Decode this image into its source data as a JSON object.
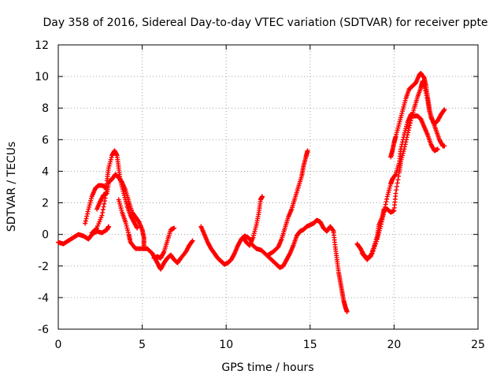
{
  "chart_data": {
    "type": "scatter",
    "title": "Day 358 of 2016, Sidereal Day-to-day VTEC variation (SDTVAR) for receiver ppte",
    "xlabel": "GPS time / hours",
    "ylabel": "SDTVAR / TECUs",
    "xlim": [
      0,
      25
    ],
    "ylim": [
      -6,
      12
    ],
    "xticks": [
      0,
      5,
      10,
      15,
      20,
      25
    ],
    "yticks": [
      -6,
      -4,
      -2,
      0,
      2,
      4,
      6,
      8,
      10,
      12
    ],
    "xtick_labels": [
      "0",
      "5",
      "10",
      "15",
      "20",
      "25"
    ],
    "ytick_labels": [
      "-6",
      "-4",
      "-2",
      "0",
      "2",
      "4",
      "6",
      "8",
      "10",
      "12"
    ],
    "grid": true,
    "marker": "+",
    "color": "#ff0000",
    "series": [
      {
        "name": "ppte",
        "segments": [
          [
            [
              0.0,
              -0.5
            ],
            [
              0.3,
              -0.6
            ],
            [
              0.6,
              -0.4
            ],
            [
              0.9,
              -0.2
            ],
            [
              1.2,
              0.0
            ],
            [
              1.5,
              -0.1
            ],
            [
              1.8,
              -0.3
            ],
            [
              2.0,
              0.0
            ],
            [
              2.3,
              0.2
            ],
            [
              2.6,
              0.1
            ],
            [
              2.9,
              0.3
            ],
            [
              3.0,
              0.5
            ]
          ],
          [
            [
              1.6,
              0.7
            ],
            [
              1.8,
              1.6
            ],
            [
              2.0,
              2.4
            ],
            [
              2.2,
              2.9
            ],
            [
              2.4,
              3.1
            ],
            [
              2.6,
              3.1
            ],
            [
              2.8,
              3.0
            ]
          ],
          [
            [
              2.0,
              0.1
            ],
            [
              2.3,
              0.4
            ],
            [
              2.6,
              1.2
            ],
            [
              2.8,
              2.3
            ],
            [
              2.9,
              3.4
            ],
            [
              3.0,
              4.2
            ],
            [
              3.2,
              5.0
            ],
            [
              3.35,
              5.3
            ],
            [
              3.5,
              5.0
            ],
            [
              3.6,
              4.2
            ],
            [
              3.7,
              3.4
            ],
            [
              3.9,
              2.6
            ],
            [
              4.1,
              1.8
            ],
            [
              4.3,
              1.2
            ],
            [
              4.5,
              0.8
            ],
            [
              4.7,
              0.4
            ]
          ],
          [
            [
              2.3,
              1.6
            ],
            [
              2.5,
              2.1
            ],
            [
              2.7,
              2.5
            ],
            [
              2.9,
              2.6
            ],
            [
              3.0,
              3.3
            ],
            [
              3.2,
              3.5
            ],
            [
              3.4,
              3.8
            ],
            [
              3.6,
              3.6
            ],
            [
              3.8,
              3.3
            ],
            [
              4.0,
              2.8
            ],
            [
              4.2,
              2.1
            ],
            [
              4.4,
              1.4
            ],
            [
              4.6,
              1.1
            ],
            [
              4.8,
              0.8
            ],
            [
              5.0,
              0.3
            ],
            [
              5.1,
              -0.2
            ],
            [
              5.1,
              -0.7
            ]
          ],
          [
            [
              3.6,
              2.2
            ],
            [
              3.8,
              1.4
            ],
            [
              4.0,
              0.8
            ],
            [
              4.2,
              0.0
            ],
            [
              4.3,
              -0.5
            ],
            [
              4.6,
              -0.9
            ],
            [
              5.0,
              -0.9
            ],
            [
              5.3,
              -0.9
            ],
            [
              5.6,
              -1.2
            ],
            [
              5.8,
              -1.6
            ],
            [
              6.0,
              -2.0
            ],
            [
              6.1,
              -2.2
            ],
            [
              6.3,
              -1.8
            ],
            [
              6.5,
              -1.5
            ],
            [
              6.7,
              -1.3
            ],
            [
              6.9,
              -1.6
            ],
            [
              7.1,
              -1.8
            ],
            [
              7.3,
              -1.5
            ],
            [
              7.6,
              -1.1
            ],
            [
              7.8,
              -0.7
            ],
            [
              8.0,
              -0.4
            ]
          ],
          [
            [
              5.7,
              -1.5
            ],
            [
              5.9,
              -1.4
            ],
            [
              6.1,
              -1.5
            ],
            [
              6.3,
              -1.1
            ],
            [
              6.5,
              -0.4
            ],
            [
              6.7,
              0.3
            ],
            [
              6.9,
              0.4
            ]
          ],
          [
            [
              8.5,
              0.5
            ],
            [
              8.7,
              0.0
            ],
            [
              8.9,
              -0.5
            ],
            [
              9.1,
              -0.9
            ],
            [
              9.3,
              -1.2
            ],
            [
              9.5,
              -1.5
            ],
            [
              9.7,
              -1.7
            ],
            [
              9.9,
              -1.9
            ],
            [
              10.1,
              -1.8
            ],
            [
              10.3,
              -1.6
            ],
            [
              10.5,
              -1.2
            ],
            [
              10.7,
              -0.7
            ],
            [
              10.9,
              -0.3
            ],
            [
              11.1,
              -0.1
            ],
            [
              11.3,
              -0.2
            ],
            [
              11.5,
              -0.4
            ]
          ],
          [
            [
              11.0,
              -0.2
            ],
            [
              11.2,
              -0.5
            ],
            [
              11.4,
              -0.7
            ],
            [
              11.6,
              -0.2
            ],
            [
              11.8,
              0.6
            ],
            [
              11.95,
              1.4
            ],
            [
              12.05,
              2.2
            ],
            [
              12.15,
              2.4
            ]
          ],
          [
            [
              11.5,
              -0.6
            ],
            [
              11.8,
              -0.9
            ],
            [
              12.1,
              -1.0
            ],
            [
              12.4,
              -1.3
            ],
            [
              12.7,
              -1.6
            ],
            [
              13.0,
              -1.9
            ],
            [
              13.2,
              -2.1
            ],
            [
              13.4,
              -2.0
            ],
            [
              13.6,
              -1.6
            ],
            [
              13.8,
              -1.2
            ],
            [
              14.0,
              -0.7
            ],
            [
              14.2,
              -0.1
            ],
            [
              14.4,
              0.2
            ],
            [
              14.6,
              0.3
            ],
            [
              14.8,
              0.5
            ],
            [
              15.0,
              0.6
            ],
            [
              15.2,
              0.7
            ],
            [
              15.4,
              0.9
            ],
            [
              15.6,
              0.8
            ],
            [
              15.8,
              0.4
            ],
            [
              16.0,
              0.2
            ],
            [
              16.2,
              0.5
            ],
            [
              16.4,
              0.2
            ]
          ],
          [
            [
              12.5,
              -1.3
            ],
            [
              12.8,
              -1.1
            ],
            [
              13.1,
              -0.8
            ],
            [
              13.3,
              -0.3
            ],
            [
              13.5,
              0.4
            ],
            [
              13.7,
              1.1
            ],
            [
              13.9,
              1.6
            ],
            [
              14.1,
              2.3
            ],
            [
              14.3,
              3.0
            ],
            [
              14.5,
              3.7
            ],
            [
              14.6,
              4.3
            ],
            [
              14.75,
              4.9
            ],
            [
              14.85,
              5.3
            ]
          ],
          [
            [
              16.4,
              0.1
            ],
            [
              16.5,
              -0.8
            ],
            [
              16.6,
              -1.6
            ],
            [
              16.7,
              -2.4
            ],
            [
              16.8,
              -3.0
            ],
            [
              16.9,
              -3.6
            ],
            [
              17.0,
              -4.2
            ],
            [
              17.1,
              -4.6
            ],
            [
              17.2,
              -4.9
            ]
          ],
          [
            [
              17.8,
              -0.6
            ],
            [
              18.0,
              -0.9
            ],
            [
              18.2,
              -1.3
            ],
            [
              18.4,
              -1.5
            ],
            [
              18.6,
              -1.4
            ],
            [
              18.8,
              -0.8
            ],
            [
              19.0,
              -0.1
            ],
            [
              19.1,
              0.6
            ],
            [
              19.3,
              1.1
            ],
            [
              19.4,
              1.6
            ],
            [
              19.6,
              1.6
            ],
            [
              19.8,
              1.4
            ],
            [
              20.0,
              1.5
            ],
            [
              20.1,
              2.6
            ],
            [
              20.3,
              3.9
            ],
            [
              20.4,
              4.6
            ],
            [
              20.6,
              5.4
            ],
            [
              20.8,
              6.3
            ],
            [
              21.0,
              7.2
            ],
            [
              21.2,
              8.0
            ],
            [
              21.4,
              8.7
            ],
            [
              21.6,
              9.3
            ],
            [
              21.7,
              9.7
            ],
            [
              21.8,
              9.4
            ],
            [
              22.0,
              8.5
            ],
            [
              22.1,
              7.8
            ],
            [
              22.3,
              7.2
            ],
            [
              22.5,
              6.6
            ],
            [
              22.7,
              6.0
            ],
            [
              22.9,
              5.6
            ],
            [
              23.0,
              5.6
            ]
          ],
          [
            [
              18.1,
              -1.2
            ],
            [
              18.4,
              -1.6
            ],
            [
              18.7,
              -1.2
            ],
            [
              19.0,
              -0.3
            ],
            [
              19.2,
              0.5
            ],
            [
              19.4,
              1.4
            ],
            [
              19.6,
              2.4
            ],
            [
              19.8,
              3.2
            ],
            [
              19.9,
              3.5
            ],
            [
              20.1,
              3.8
            ],
            [
              20.3,
              4.5
            ],
            [
              20.4,
              5.4
            ],
            [
              20.6,
              6.3
            ],
            [
              20.8,
              7.1
            ],
            [
              21.0,
              7.6
            ],
            [
              21.2,
              7.5
            ],
            [
              21.4,
              7.5
            ],
            [
              21.6,
              7.3
            ],
            [
              21.8,
              6.8
            ],
            [
              22.0,
              6.3
            ],
            [
              22.2,
              5.7
            ],
            [
              22.4,
              5.3
            ],
            [
              22.6,
              5.4
            ]
          ],
          [
            [
              19.8,
              4.9
            ],
            [
              19.9,
              5.3
            ],
            [
              20.0,
              5.8
            ],
            [
              20.1,
              6.2
            ],
            [
              20.3,
              7.0
            ],
            [
              20.5,
              7.8
            ],
            [
              20.7,
              8.6
            ],
            [
              20.9,
              9.2
            ],
            [
              21.1,
              9.4
            ],
            [
              21.3,
              9.6
            ],
            [
              21.5,
              10.1
            ],
            [
              21.6,
              10.2
            ],
            [
              21.8,
              9.9
            ],
            [
              21.9,
              9.4
            ],
            [
              22.0,
              8.7
            ],
            [
              22.1,
              8.0
            ],
            [
              22.2,
              7.4
            ],
            [
              22.4,
              7.0
            ],
            [
              22.6,
              7.2
            ],
            [
              22.8,
              7.6
            ],
            [
              23.0,
              7.9
            ]
          ]
        ]
      }
    ]
  }
}
